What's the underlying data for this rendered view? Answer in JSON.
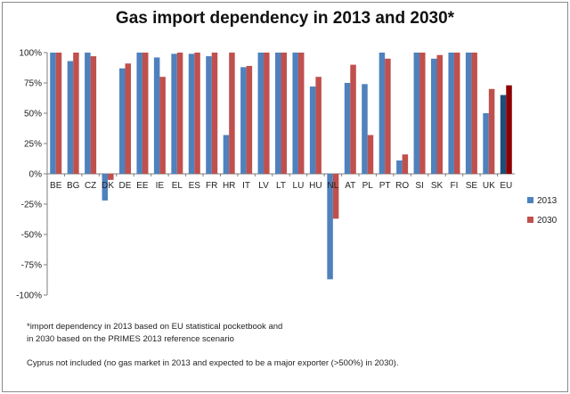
{
  "chart_data": {
    "type": "bar",
    "title": "Gas import dependency in 2013 and 2030*",
    "xlabel": "",
    "ylabel": "",
    "ylim": [
      -100,
      100
    ],
    "yticks": [
      100,
      75,
      50,
      25,
      0,
      -25,
      -50,
      -75,
      -100
    ],
    "ytick_labels": [
      "100%",
      "75%",
      "50%",
      "25%",
      "0%",
      "-25%",
      "-50%",
      "-75%",
      "-100%"
    ],
    "categories": [
      "BE",
      "BG",
      "CZ",
      "DK",
      "DE",
      "EE",
      "IE",
      "EL",
      "ES",
      "FR",
      "HR",
      "IT",
      "LV",
      "LT",
      "LU",
      "HU",
      "NL",
      "AT",
      "PL",
      "PT",
      "RO",
      "SI",
      "SK",
      "FI",
      "SE",
      "UK",
      "EU"
    ],
    "series": [
      {
        "name": "2013",
        "color": "#4f81bd",
        "highlight_color": "#1f4e79",
        "values": [
          100,
          93,
          100,
          -22,
          87,
          100,
          96,
          99,
          99,
          97,
          32,
          88,
          100,
          100,
          100,
          72,
          -87,
          75,
          74,
          100,
          11,
          100,
          95,
          100,
          100,
          50,
          65
        ]
      },
      {
        "name": "2030",
        "color": "#c0504d",
        "highlight_color": "#8b0000",
        "values": [
          100,
          100,
          97,
          -5,
          91,
          100,
          80,
          100,
          100,
          100,
          100,
          89,
          100,
          100,
          100,
          80,
          -37,
          90,
          32,
          95,
          16,
          100,
          98,
          100,
          100,
          70,
          73
        ]
      }
    ],
    "grid": false,
    "legend": "right"
  },
  "footnotes": {
    "line1": "*import dependency  in 2013 based on EU statistical pocketbook and",
    "line2": "in 2030 based on the PRIMES 2013 reference scenario",
    "line3": "Cyprus not included  (no gas market in 2013 and expected to be a major exporter (>500%) in 2030)."
  }
}
